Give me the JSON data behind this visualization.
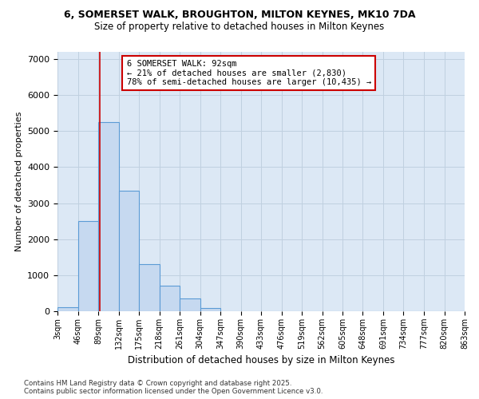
{
  "title1": "6, SOMERSET WALK, BROUGHTON, MILTON KEYNES, MK10 7DA",
  "title2": "Size of property relative to detached houses in Milton Keynes",
  "xlabel": "Distribution of detached houses by size in Milton Keynes",
  "ylabel": "Number of detached properties",
  "footnote": "Contains HM Land Registry data © Crown copyright and database right 2025.\nContains public sector information licensed under the Open Government Licence v3.0.",
  "property_label": "6 SOMERSET WALK: 92sqm",
  "annotation_line1": "← 21% of detached houses are smaller (2,830)",
  "annotation_line2": "78% of semi-detached houses are larger (10,435) →",
  "property_size": 92,
  "bin_edges": [
    3,
    46,
    89,
    132,
    175,
    218,
    261,
    304,
    347,
    390,
    433,
    476,
    519,
    562,
    605,
    648,
    691,
    734,
    777,
    820,
    863
  ],
  "bar_heights": [
    100,
    2500,
    5250,
    3350,
    1300,
    700,
    350,
    80,
    0,
    0,
    0,
    0,
    0,
    0,
    0,
    0,
    0,
    0,
    0,
    0
  ],
  "bar_color": "#c6d9f0",
  "bar_edge_color": "#5b9bd5",
  "red_line_color": "#cc0000",
  "annotation_box_color": "#cc0000",
  "grid_color": "#c0d0e0",
  "background_color": "#dce8f5",
  "ylim": [
    0,
    7200
  ],
  "yticks": [
    0,
    1000,
    2000,
    3000,
    4000,
    5000,
    6000,
    7000
  ]
}
